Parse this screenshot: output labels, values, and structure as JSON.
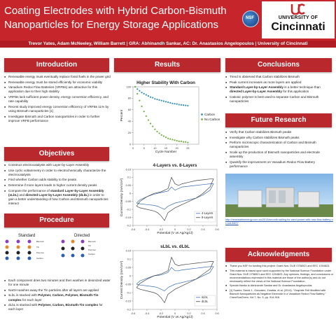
{
  "header": {
    "title": "Coating Electrodes with Hybrid Carbon-Bismuth Nanoparticles for Energy Storage Applications",
    "byline": "Trevor Yates, Adam McNeeley, William Barrett | GRA: Abhinandh Sankar, AC: Dr. Anastasios Angelopoulos | University of Cincinnati",
    "nsf_logo_text": "NSF",
    "uc_logo": {
      "top_line": "UNIVERSITY OF",
      "name": "Cincinnati"
    },
    "colors": {
      "header_red": "#c6262b",
      "section_red": "#b8282d"
    }
  },
  "introduction": {
    "heading": "Introduction",
    "bullets": [
      "Renewable energy must eventually replace fossil fuels in the power grid",
      "Renewable energy must be stored efficiently for economic viability",
      "Vanadium Redox Flow Batteries (VRFBs) are attractive for this application due to their high stability",
      "VRFBs lack sufficient power density, energy conversion efficiency, and rate capability",
      "Recent study improved energy conversion efficiency of VRFBs 11% by using Bismuth nanoparticles [1]",
      "Investigate Bismuth and Carbon nanoparticles in order to further improve VRFB performance"
    ]
  },
  "objectives": {
    "heading": "Objectives",
    "bullets": [
      "Construct electrocatalysts with Layer-by-Layer Assembly",
      "Use cyclic voltammetry in order to electrochemically characterize the electrocatalysts",
      "Find whether Carbon adds stability to the peaks",
      "Determine if more layers leads to higher current density peaks",
      "Compare the performance of",
      "standard Layer-by-Layer Assembly (sLbL)",
      "and",
      "directed Layer-by-Layer Assembly (dLbL)",
      "in order to gain a better understanding of how Carbon and Bismuth nanoparticles interact"
    ]
  },
  "procedure": {
    "heading": "Procedure",
    "labels": {
      "standard": "Standard",
      "directed": "Directed"
    },
    "legend": [
      "Bismuth",
      "Tin",
      "Polymer",
      "Carbon"
    ],
    "bullets": [
      "Each component dries two minutes and then washes in deionized water for one minute",
      "NaOH washes away the Tin particles after all layers are applied",
      "sLbL is stacked with",
      "Polymer, Carbon, Polymer, Bismuth-Tin complex",
      "for each layer",
      "dLbL is stacked with",
      "Polymer, Carbon, Bismuth-Tin complex",
      "for each layer"
    ]
  },
  "results": {
    "heading": "Results"
  },
  "chart_data": [
    {
      "type": "scatter",
      "title": "Higher Stability With Carbon",
      "xlabel": "Cycle Number",
      "ylabel": "Percent",
      "xlim": [
        0,
        30
      ],
      "ylim": [
        0,
        100
      ],
      "xticks": [
        0,
        5,
        10,
        15,
        20,
        25
      ],
      "yticks": [
        0,
        20,
        40,
        60,
        80,
        100
      ],
      "series": [
        {
          "name": "Carbon",
          "color": "#2f8fb5",
          "x": [
            1,
            2,
            3,
            4,
            5,
            6,
            7,
            8,
            9,
            10,
            11,
            12,
            13,
            14,
            15,
            16,
            17,
            18,
            19,
            20,
            21,
            22,
            23,
            24,
            25
          ],
          "y": [
            100,
            96,
            93,
            90,
            88,
            86,
            84,
            82,
            81,
            79,
            78,
            77,
            76,
            75,
            74,
            73,
            72,
            71,
            70.5,
            70,
            69,
            68.5,
            68,
            67.5,
            67
          ]
        },
        {
          "name": "No Carbon",
          "color": "#6fae3e",
          "x": [
            1,
            2,
            3,
            4,
            5,
            6,
            7,
            8,
            9,
            10,
            11,
            12,
            13,
            14,
            15,
            16,
            17,
            18,
            19,
            20,
            21,
            22,
            23,
            24,
            25
          ],
          "y": [
            100,
            88,
            76,
            66,
            57,
            49,
            42,
            36,
            31,
            26,
            22,
            19,
            16,
            14,
            12,
            10,
            9,
            8,
            7,
            6,
            5,
            5,
            4,
            4,
            3
          ]
        }
      ],
      "legend_position": "right"
    },
    {
      "type": "line",
      "title": "4-Layers vs. 8-Layers",
      "xlabel": "Potential (V vs Ag/AgCl)",
      "ylabel": "Current Density (mA/cm²)",
      "xlim": [
        -0.6,
        0.6
      ],
      "ylim": [
        -0.2,
        0.15
      ],
      "xticks": [
        -0.6,
        -0.4,
        -0.2,
        0,
        0.2,
        0.4,
        0.6
      ],
      "yticks": [
        0.15,
        0.1,
        0.05,
        0,
        -0.05,
        -0.1,
        -0.15,
        -0.2
      ],
      "series": [
        {
          "name": "4-Layers",
          "color": "#3a6fb0",
          "x": [
            -0.55,
            -0.5,
            -0.4,
            -0.3,
            -0.2,
            -0.1,
            -0.05,
            0,
            0.05,
            0.1,
            0.2,
            0.3,
            0.4,
            0.5,
            0.55,
            0.5,
            0.4,
            0.3,
            0.2,
            0.1,
            0,
            -0.1,
            -0.15,
            -0.2,
            -0.25,
            -0.3,
            -0.4,
            -0.5,
            -0.55
          ],
          "y": [
            -0.06,
            -0.04,
            -0.02,
            -0.005,
            0.005,
            0.015,
            0.04,
            0.02,
            0.03,
            0.04,
            0.045,
            0.05,
            0.055,
            0.06,
            0.06,
            0.02,
            -0.01,
            -0.03,
            -0.04,
            -0.05,
            -0.06,
            -0.08,
            -0.1,
            -0.09,
            -0.08,
            -0.075,
            -0.07,
            -0.065,
            -0.06
          ]
        },
        {
          "name": "8-Layers",
          "color": "#444444",
          "x": [
            -0.55,
            -0.5,
            -0.4,
            -0.3,
            -0.2,
            -0.1,
            -0.05,
            0,
            0.05,
            0.1,
            0.2,
            0.3,
            0.4,
            0.5,
            0.55,
            0.5,
            0.4,
            0.3,
            0.2,
            0.1,
            0,
            -0.1,
            -0.15,
            -0.2,
            -0.25,
            -0.3,
            -0.4,
            -0.5,
            -0.55
          ],
          "y": [
            -0.08,
            -0.05,
            -0.02,
            0,
            0.01,
            0.03,
            0.1,
            0.06,
            0.05,
            0.06,
            0.07,
            0.08,
            0.085,
            0.09,
            0.09,
            0.04,
            0,
            -0.03,
            -0.05,
            -0.07,
            -0.09,
            -0.12,
            -0.17,
            -0.14,
            -0.12,
            -0.11,
            -0.1,
            -0.09,
            -0.08
          ]
        }
      ],
      "legend_position": "bottom-right"
    },
    {
      "type": "line",
      "title": "sLbL vs. dLbL",
      "xlabel": "Potential (V vs Ag/AgCl)",
      "ylabel": "Current Density (mA/cm²)",
      "xlim": [
        -0.6,
        0.6
      ],
      "ylim": [
        -0.2,
        0.15
      ],
      "xticks": [
        -0.6,
        -0.4,
        -0.2,
        0,
        0.2,
        0.4,
        0.6
      ],
      "yticks": [
        0.15,
        0.1,
        0.05,
        0,
        -0.05,
        -0.1,
        -0.15,
        -0.2
      ],
      "series": [
        {
          "name": "sLbL",
          "color": "#3a6fb0",
          "x": [
            -0.55,
            -0.5,
            -0.4,
            -0.3,
            -0.2,
            -0.1,
            -0.05,
            0,
            0.05,
            0.1,
            0.2,
            0.3,
            0.4,
            0.5,
            0.55,
            0.5,
            0.4,
            0.3,
            0.2,
            0.1,
            0,
            -0.1,
            -0.15,
            -0.2,
            -0.25,
            -0.3,
            -0.4,
            -0.5,
            -0.55
          ],
          "y": [
            -0.05,
            -0.03,
            -0.015,
            0,
            0.005,
            0.02,
            0.05,
            0.03,
            0.03,
            0.035,
            0.04,
            0.045,
            0.05,
            0.055,
            0.055,
            0.02,
            0,
            -0.02,
            -0.03,
            -0.04,
            -0.05,
            -0.07,
            -0.09,
            -0.08,
            -0.07,
            -0.065,
            -0.06,
            -0.055,
            -0.05
          ]
        },
        {
          "name": "dLbL",
          "color": "#444444",
          "x": [
            -0.55,
            -0.5,
            -0.4,
            -0.3,
            -0.2,
            -0.1,
            -0.05,
            0,
            0.05,
            0.1,
            0.2,
            0.3,
            0.4,
            0.5,
            0.55,
            0.5,
            0.4,
            0.3,
            0.2,
            0.1,
            0,
            -0.1,
            -0.15,
            -0.2,
            -0.25,
            -0.3,
            -0.4,
            -0.5,
            -0.55
          ],
          "y": [
            -0.07,
            -0.045,
            -0.02,
            0,
            0.01,
            0.03,
            0.11,
            0.07,
            0.06,
            0.065,
            0.07,
            0.075,
            0.08,
            0.085,
            0.085,
            0.04,
            0.01,
            -0.02,
            -0.04,
            -0.06,
            -0.08,
            -0.11,
            -0.16,
            -0.13,
            -0.11,
            -0.1,
            -0.09,
            -0.08,
            -0.07
          ]
        }
      ],
      "legend_position": "bottom-right"
    }
  ],
  "conclusions": {
    "heading": "Conclusions",
    "bullets": [
      "Trend is observed that Carbon stabilizes Bismuth",
      "Peak current increases as more layers are applied",
      "Standard Layer-by-Layer Assembly",
      "is a better technique than",
      "directed Layer-by-Layer Assembly",
      "for this application",
      "Cationic polymer is best used to separate Carbon and Bismuth nanoparticles"
    ]
  },
  "future_research": {
    "heading": "Future Research",
    "bullets": [
      "Verify that Carbon stabilizes Bismuth peaks",
      "Investigate why Carbon stabilizes Bismuth peaks",
      "Perform microscopic characterization of Carbon and Bismuth nanoparticles",
      "Scale up the production of Bismuth nanoparticles and electrode assembly",
      "Quantify the improvement on Vanadium Redox Flow Battery performance"
    ],
    "image_link": "http://renewableenergy.com.au/2013/smooth-sailing-for-wind-power-with-new-flow-battery-or-not-3407/"
  },
  "acknowledgments": {
    "heading": "Acknowledgments",
    "bullets": [
      "Thank you NSF for funding this project: Grant Nos. DUE 0756921 and EEC 1004823.",
      "This material is based upon work supported by the National Science Foundation under Grant Nos. DUE 0756921 and EEC 1004823. Any opinions, findings, and conclusions or recommendations expressed in this material are those of the author(s) and do not necessarily reflect the views of the National Science Foundation.",
      "Special thanks to Abhinandh Sankar and Dr. Anastasios Angelopoulos",
      "[1] Suarez, David J., Gonzalez, Zoraida, et al. (2014). \"Graphite Felt Modified with Bismuth Nanoparticles as Negative Electrode in a Vanadium Redox Flow Battery.\" ChemSusChem, Vol 7, No. 3, pp. 914-918."
    ]
  }
}
